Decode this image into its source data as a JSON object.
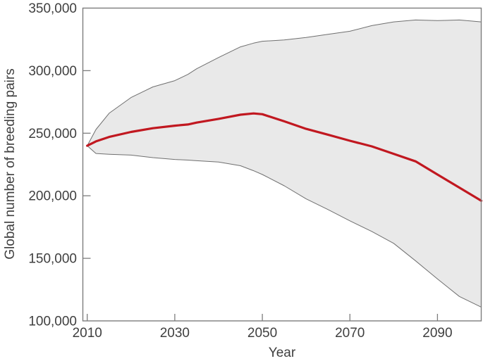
{
  "figure": {
    "xlabel": "Year",
    "ylabel": "Global number of breeding pairs"
  },
  "colors": {
    "median_line": "#c11820",
    "band_fill": "#e9e9e9",
    "band_edge": "#6f6f6f",
    "axis": "#7d7d7d",
    "text": "#3f3f3f",
    "background": "#ffffff"
  },
  "chart_data": {
    "type": "line",
    "title": "",
    "xlabel": "Year",
    "ylabel": "Global number of breeding pairs",
    "xlim": [
      2009,
      2100
    ],
    "ylim": [
      100000,
      350000
    ],
    "grid": false,
    "legend_position": "none",
    "x_ticks": [
      2010,
      2030,
      2050,
      2070,
      2090
    ],
    "x_tick_labels": [
      "2010",
      "2030",
      "2050",
      "2070",
      "2090"
    ],
    "y_ticks": [
      100000,
      150000,
      200000,
      250000,
      300000,
      350000
    ],
    "y_tick_labels": [
      "100,000",
      "150,000",
      "200,000",
      "250,000",
      "300,000",
      "350,000"
    ],
    "x": [
      2010,
      2012,
      2015,
      2020,
      2025,
      2030,
      2033,
      2035,
      2040,
      2045,
      2048,
      2050,
      2055,
      2060,
      2065,
      2070,
      2075,
      2080,
      2085,
      2090,
      2095,
      2100
    ],
    "series": [
      {
        "name": "median",
        "style": "line",
        "color": "#c11820",
        "width": 3.2,
        "values": [
          240000,
          243500,
          247000,
          251000,
          254000,
          256000,
          257000,
          258500,
          261500,
          264800,
          265800,
          265200,
          259500,
          253500,
          248800,
          244000,
          239500,
          233500,
          227500,
          217000,
          206500,
          196000
        ]
      },
      {
        "name": "upper_envelope",
        "style": "band-edge",
        "color": "#6f6f6f",
        "width": 1,
        "values": [
          240000,
          253000,
          266000,
          278500,
          287000,
          292000,
          297000,
          301500,
          310500,
          319000,
          322000,
          323500,
          324500,
          326500,
          329000,
          331500,
          336000,
          339000,
          340500,
          340000,
          340500,
          339000
        ]
      },
      {
        "name": "lower_envelope",
        "style": "band-edge",
        "color": "#6f6f6f",
        "width": 1,
        "values": [
          240000,
          233800,
          233200,
          232500,
          230500,
          229000,
          228500,
          228000,
          227000,
          224000,
          220000,
          217000,
          208000,
          197500,
          189000,
          180000,
          171500,
          162000,
          148000,
          133500,
          119500,
          111000
        ]
      }
    ],
    "band_fill": "#e9e9e9"
  }
}
